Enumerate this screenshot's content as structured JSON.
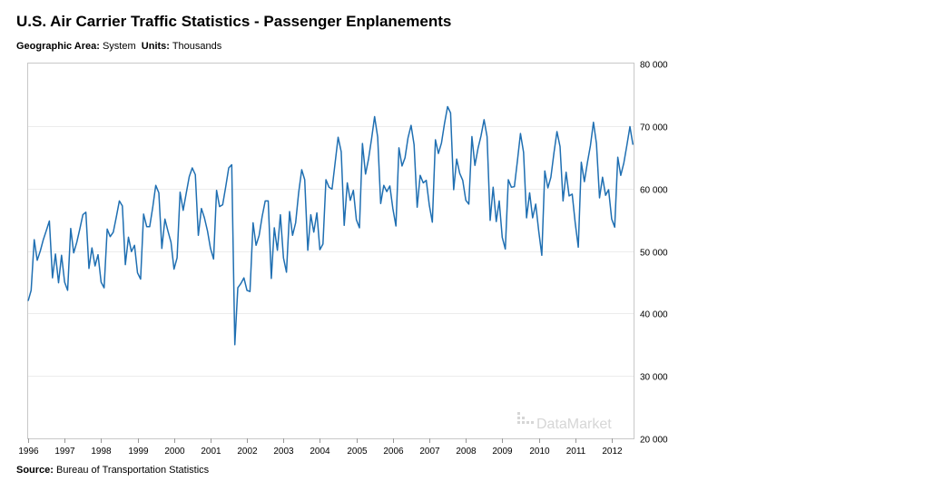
{
  "header": {
    "title": "U.S. Air Carrier Traffic Statistics - Passenger Enplanements",
    "geo_label": "Geographic Area:",
    "geo_value": "System",
    "units_label": "Units:",
    "units_value": "Thousands"
  },
  "footer": {
    "source_label": "Source:",
    "source_value": "Bureau of Transportation Statistics"
  },
  "watermark": "DataMarket",
  "colors": {
    "line": "#1f6fb2",
    "frame": "#c8c8c8",
    "grid": "#ececec"
  },
  "chart_data": {
    "type": "line",
    "title": "U.S. Air Carrier Traffic Statistics - Passenger Enplanements",
    "xlabel": "",
    "ylabel": "",
    "x_start": "1996-01",
    "x_end": "2012-06",
    "xlim": [
      1996,
      2012.6
    ],
    "ylim": [
      20000,
      80000
    ],
    "x_ticks": [
      "1996",
      "1997",
      "1998",
      "1999",
      "2000",
      "2001",
      "2002",
      "2003",
      "2004",
      "2005",
      "2006",
      "2007",
      "2008",
      "2009",
      "2010",
      "2011",
      "2012"
    ],
    "y_ticks": [
      "20 000",
      "30 000",
      "40 000",
      "50 000",
      "60 000",
      "70 000",
      "80 000"
    ],
    "y_tick_values": [
      20000,
      30000,
      40000,
      50000,
      60000,
      70000,
      80000
    ],
    "grid": true,
    "legend": "none",
    "series": [
      {
        "values": [
          42000,
          43700,
          51800,
          48500,
          50000,
          51800,
          53300,
          54800,
          45700,
          49500,
          44900,
          49300,
          45000,
          43700,
          53600,
          49700,
          51400,
          53500,
          55800,
          56200,
          47200,
          50500,
          47600,
          49400,
          45000,
          44100,
          53500,
          52300,
          53000,
          55400,
          58000,
          57200,
          47800,
          52200,
          49900,
          50900,
          46500,
          45500,
          55900,
          53900,
          53900,
          57000,
          60500,
          59300,
          50400,
          55100,
          53200,
          51400,
          47100,
          48900,
          59400,
          56500,
          59200,
          61900,
          63300,
          62200,
          52500,
          56800,
          55300,
          53200,
          50400,
          48700,
          59700,
          57100,
          57400,
          60200,
          63300,
          63800,
          35000,
          44100,
          44800,
          45700,
          43700,
          43500,
          54500,
          50900,
          52500,
          55500,
          58000,
          58000,
          45600,
          53700,
          50100,
          55800,
          48900,
          46600,
          56300,
          52500,
          54500,
          59300,
          63000,
          61400,
          50100,
          55800,
          53000,
          56100,
          50200,
          51100,
          61400,
          60200,
          59900,
          64100,
          68200,
          65900,
          54100,
          60900,
          58100,
          59700,
          55000,
          53700,
          67200,
          62300,
          64700,
          68000,
          71500,
          68200,
          57600,
          60500,
          59500,
          60400,
          56800,
          54000,
          66500,
          63600,
          64900,
          68100,
          70100,
          67000,
          57000,
          62100,
          60900,
          61300,
          57300,
          54600,
          67800,
          65600,
          67300,
          70400,
          73100,
          72100,
          59800,
          64700,
          62400,
          61300,
          58100,
          57500,
          68300,
          63700,
          66400,
          68400,
          71000,
          68300,
          54900,
          60200,
          54700,
          58000,
          52200,
          50300,
          61400,
          60200,
          60300,
          64500,
          68800,
          65800,
          55300,
          59300,
          55300,
          57500,
          53200,
          49300,
          62800,
          60100,
          61800,
          65700,
          69100,
          66700,
          58000,
          62600,
          58800,
          59100,
          54500,
          50600,
          64200,
          61100,
          64100,
          66900,
          70600,
          67200,
          58500,
          61800,
          58900,
          59800,
          55100,
          53800,
          65000,
          62100,
          64100,
          66900,
          69900,
          67000
        ]
      }
    ]
  }
}
